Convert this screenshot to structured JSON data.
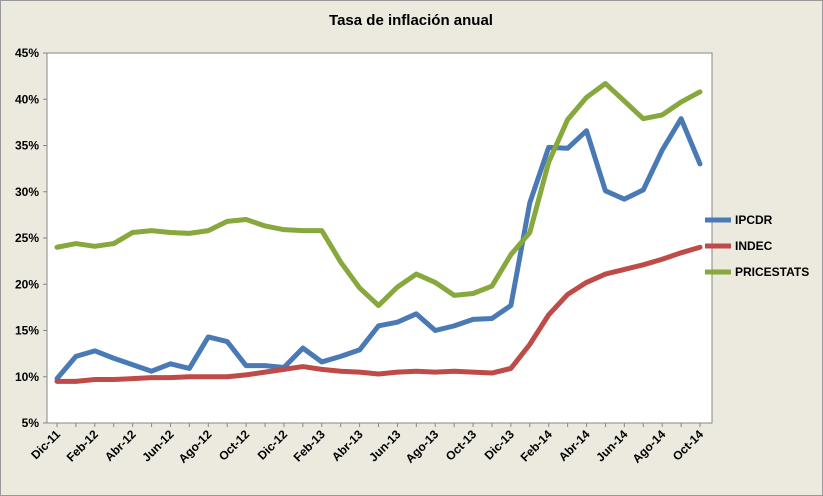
{
  "chart_data": {
    "type": "line",
    "title": "Tasa de inflación anual",
    "categories": [
      "Dic-11",
      null,
      "Feb-12",
      null,
      "Abr-12",
      null,
      "Jun-12",
      null,
      "Ago-12",
      null,
      "Oct-12",
      null,
      "Dic-12",
      null,
      "Feb-13",
      null,
      "Abr-13",
      null,
      "Jun-13",
      null,
      "Ago-13",
      null,
      "Oct-13",
      null,
      "Dic-13",
      null,
      "Feb-14",
      null,
      "Abr-14",
      null,
      "Jun-14",
      null,
      "Ago-14",
      null,
      "Oct-14"
    ],
    "series": [
      {
        "name": "IPCDR",
        "color": "#4a7ab5",
        "values": [
          9.8,
          12.2,
          12.8,
          12.0,
          11.3,
          10.6,
          11.4,
          10.9,
          14.3,
          13.8,
          11.2,
          11.2,
          11.0,
          13.1,
          11.6,
          12.2,
          12.9,
          15.5,
          15.9,
          16.8,
          15.0,
          15.5,
          16.2,
          16.3,
          17.7,
          28.8,
          34.8,
          34.7,
          36.6,
          30.1,
          29.2,
          30.2,
          34.5,
          37.9,
          33.0
        ]
      },
      {
        "name": "INDEC",
        "color": "#be4b48",
        "values": [
          9.5,
          9.5,
          9.7,
          9.7,
          9.8,
          9.9,
          9.9,
          10.0,
          10.0,
          10.0,
          10.2,
          10.5,
          10.8,
          11.1,
          10.8,
          10.6,
          10.5,
          10.3,
          10.5,
          10.6,
          10.5,
          10.6,
          10.5,
          10.4,
          10.9,
          13.5,
          16.7,
          18.9,
          20.2,
          21.1,
          21.6,
          22.1,
          22.7,
          23.4,
          24.0
        ]
      },
      {
        "name": "PRICESTATS",
        "color": "#86a83c",
        "values": [
          24.0,
          24.4,
          24.1,
          24.4,
          25.6,
          25.8,
          25.6,
          25.5,
          25.8,
          26.8,
          27.0,
          26.3,
          25.9,
          25.8,
          25.8,
          22.4,
          19.6,
          17.7,
          19.7,
          21.1,
          20.2,
          18.8,
          19.0,
          19.8,
          23.2,
          25.6,
          33.2,
          37.8,
          40.2,
          41.7,
          39.8,
          37.9,
          38.3,
          39.7,
          40.8
        ]
      }
    ],
    "ylim": [
      5,
      45
    ],
    "yticks": [
      {
        "value": 5,
        "label": "5%"
      },
      {
        "value": 10,
        "label": "10%"
      },
      {
        "value": 15,
        "label": "15%"
      },
      {
        "value": 20,
        "label": "20%"
      },
      {
        "value": 25,
        "label": "25%"
      },
      {
        "value": 30,
        "label": "30%"
      },
      {
        "value": 35,
        "label": "35%"
      },
      {
        "value": 40,
        "label": "40%"
      },
      {
        "value": 45,
        "label": "45%"
      }
    ],
    "legend": "right"
  }
}
